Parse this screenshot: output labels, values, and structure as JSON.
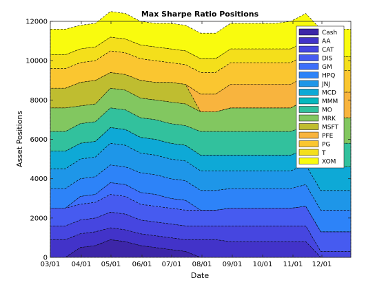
{
  "chart_data": {
    "type": "area",
    "title": "Max Sharpe Ratio Positions",
    "xlabel": "Date",
    "ylabel": "Asset Positions",
    "ylim": [
      0,
      12000
    ],
    "yticks": [
      "0",
      "2000",
      "4000",
      "6000",
      "8000",
      "10000",
      "12000"
    ],
    "xticks": [
      "03/01",
      "04/01",
      "05/01",
      "06/01",
      "07/01",
      "08/01",
      "09/01",
      "10/01",
      "11/01",
      "12/01"
    ],
    "legend_position": "top-right",
    "grid": false,
    "x": [
      "03/01",
      "03/15",
      "04/01",
      "04/15",
      "05/01",
      "05/15",
      "06/01",
      "06/15",
      "07/01",
      "07/15",
      "08/01",
      "08/15",
      "09/01",
      "09/15",
      "10/01",
      "10/15",
      "11/01",
      "11/15",
      "12/01",
      "12/15",
      "12/31"
    ],
    "series": [
      {
        "name": "Cash",
        "color": "#3d26a8",
        "values": [
          0,
          0,
          500,
          600,
          900,
          800,
          600,
          500,
          400,
          300,
          0,
          0,
          0,
          0,
          0,
          0,
          0,
          0,
          0,
          0,
          0
        ]
      },
      {
        "name": "AA",
        "color": "#4233c9",
        "values": [
          900,
          900,
          700,
          700,
          600,
          600,
          600,
          600,
          600,
          600,
          900,
          900,
          800,
          800,
          800,
          800,
          800,
          800,
          0,
          0,
          0
        ]
      },
      {
        "name": "CAT",
        "color": "#4646e0",
        "values": [
          700,
          700,
          700,
          700,
          800,
          800,
          700,
          700,
          700,
          700,
          700,
          700,
          800,
          800,
          800,
          800,
          800,
          800,
          300,
          300,
          300
        ]
      },
      {
        "name": "DIS",
        "color": "#465bf0",
        "values": [
          900,
          900,
          800,
          800,
          900,
          900,
          800,
          800,
          800,
          800,
          800,
          800,
          900,
          900,
          900,
          900,
          900,
          1000,
          1000,
          1000,
          1000
        ]
      },
      {
        "name": "GM",
        "color": "#3d6ffb",
        "values": [
          0,
          0,
          400,
          400,
          600,
          600,
          600,
          600,
          500,
          500,
          0,
          0,
          0,
          0,
          0,
          0,
          0,
          0,
          0,
          0,
          0
        ]
      },
      {
        "name": "HPQ",
        "color": "#2d83f8",
        "values": [
          1000,
          1000,
          900,
          900,
          900,
          900,
          1000,
          1000,
          1000,
          1000,
          1000,
          1000,
          1000,
          1000,
          1000,
          1000,
          1000,
          1100,
          1100,
          1100,
          1100
        ]
      },
      {
        "name": "JNJ",
        "color": "#1e96e8",
        "values": [
          1000,
          1000,
          1000,
          1000,
          1100,
          1100,
          1000,
          1000,
          1000,
          1000,
          1000,
          1000,
          900,
          900,
          900,
          900,
          900,
          1000,
          1000,
          1000,
          1000
        ]
      },
      {
        "name": "MCD",
        "color": "#0ea9d6",
        "values": [
          900,
          900,
          800,
          800,
          800,
          800,
          800,
          800,
          800,
          800,
          800,
          800,
          800,
          800,
          800,
          800,
          800,
          800,
          1200,
          1200,
          1200
        ]
      },
      {
        "name": "MMM",
        "color": "#06b8be",
        "values": [
          0,
          0,
          0,
          0,
          0,
          0,
          0,
          0,
          0,
          0,
          0,
          0,
          0,
          0,
          0,
          0,
          0,
          0,
          0,
          0,
          0
        ]
      },
      {
        "name": "MO",
        "color": "#32c19d",
        "values": [
          1000,
          1000,
          1000,
          1000,
          1000,
          1000,
          1000,
          1000,
          1000,
          1000,
          1200,
          1200,
          1200,
          1200,
          1200,
          1200,
          1200,
          1200,
          1200,
          1200,
          1200
        ]
      },
      {
        "name": "MRK",
        "color": "#82c760",
        "values": [
          1200,
          1200,
          900,
          900,
          1000,
          1000,
          1000,
          1000,
          1100,
          1100,
          1000,
          1000,
          1200,
          1200,
          1200,
          1200,
          1200,
          1300,
          1300,
          1300,
          1300
        ]
      },
      {
        "name": "MSFT",
        "color": "#bfbd30",
        "values": [
          1000,
          1000,
          1200,
          1200,
          800,
          800,
          900,
          900,
          1000,
          1000,
          0,
          0,
          0,
          0,
          0,
          0,
          0,
          0,
          0,
          0,
          0
        ]
      },
      {
        "name": "PFE",
        "color": "#f8b43e",
        "values": [
          0,
          0,
          0,
          0,
          0,
          0,
          0,
          0,
          0,
          0,
          900,
          900,
          1200,
          1200,
          1200,
          1200,
          1200,
          1200,
          1300,
          1300,
          1300
        ]
      },
      {
        "name": "PG",
        "color": "#fac630",
        "values": [
          1000,
          1000,
          1000,
          1000,
          1100,
          1100,
          1100,
          1100,
          1000,
          1000,
          1100,
          1100,
          1100,
          1100,
          1100,
          1100,
          1100,
          1100,
          1100,
          1100,
          1100
        ]
      },
      {
        "name": "T",
        "color": "#f4df1b",
        "values": [
          700,
          700,
          700,
          700,
          700,
          700,
          700,
          700,
          700,
          700,
          700,
          700,
          700,
          700,
          700,
          700,
          700,
          700,
          700,
          700,
          700
        ]
      },
      {
        "name": "XOM",
        "color": "#f9fb0e",
        "values": [
          1300,
          1300,
          1200,
          1200,
          1300,
          1300,
          1200,
          1200,
          1300,
          1300,
          1300,
          1300,
          1300,
          1300,
          1300,
          1300,
          1400,
          1400,
          1400,
          1400,
          1400
        ]
      }
    ]
  }
}
